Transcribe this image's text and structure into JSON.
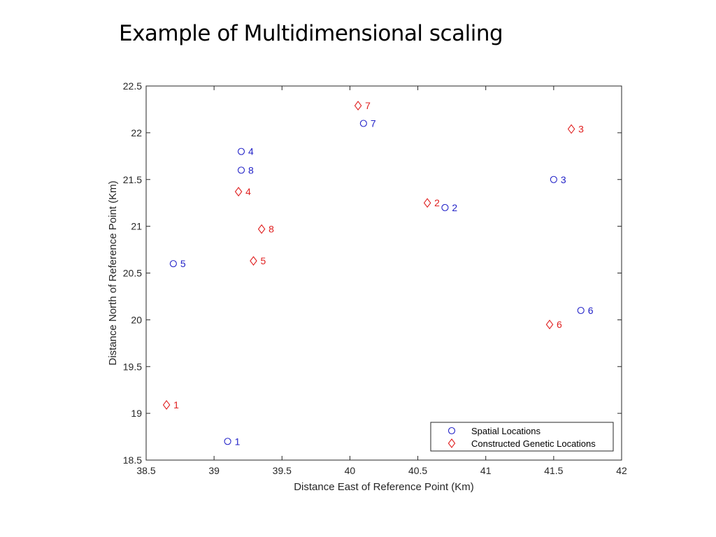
{
  "slide": {
    "title": "Example of Multidimensional scaling"
  },
  "chart_data": {
    "type": "scatter",
    "title": "",
    "xlabel": "Distance East of Reference Point (Km)",
    "ylabel": "Distance North of Reference Point (Km)",
    "xlim": [
      38.5,
      42
    ],
    "ylim": [
      18.5,
      22.5
    ],
    "xticks": [
      "38.5",
      "39",
      "39.5",
      "40",
      "40.5",
      "41",
      "41.5",
      "42"
    ],
    "yticks": [
      "18.5",
      "19",
      "19.5",
      "20",
      "20.5",
      "21",
      "21.5",
      "22",
      "22.5"
    ],
    "grid": false,
    "legend_position": "bottom-right",
    "series": [
      {
        "name": "Spatial Locations",
        "marker": "circle",
        "color": "#2323c8",
        "points": [
          {
            "label": "1",
            "x": 39.1,
            "y": 18.7
          },
          {
            "label": "2",
            "x": 40.7,
            "y": 21.2
          },
          {
            "label": "3",
            "x": 41.5,
            "y": 21.5
          },
          {
            "label": "4",
            "x": 39.2,
            "y": 21.8
          },
          {
            "label": "5",
            "x": 38.7,
            "y": 20.6
          },
          {
            "label": "6",
            "x": 41.7,
            "y": 20.1
          },
          {
            "label": "7",
            "x": 40.1,
            "y": 22.1
          },
          {
            "label": "8",
            "x": 39.2,
            "y": 21.6
          }
        ]
      },
      {
        "name": "Constructed Genetic Locations",
        "marker": "diamond",
        "color": "#e02020",
        "points": [
          {
            "label": "1",
            "x": 38.65,
            "y": 19.09
          },
          {
            "label": "2",
            "x": 40.57,
            "y": 21.25
          },
          {
            "label": "3",
            "x": 41.63,
            "y": 22.04
          },
          {
            "label": "4",
            "x": 39.18,
            "y": 21.37
          },
          {
            "label": "5",
            "x": 39.29,
            "y": 20.63
          },
          {
            "label": "6",
            "x": 41.47,
            "y": 19.95
          },
          {
            "label": "7",
            "x": 40.06,
            "y": 22.29
          },
          {
            "label": "8",
            "x": 39.35,
            "y": 20.97
          }
        ]
      }
    ]
  }
}
